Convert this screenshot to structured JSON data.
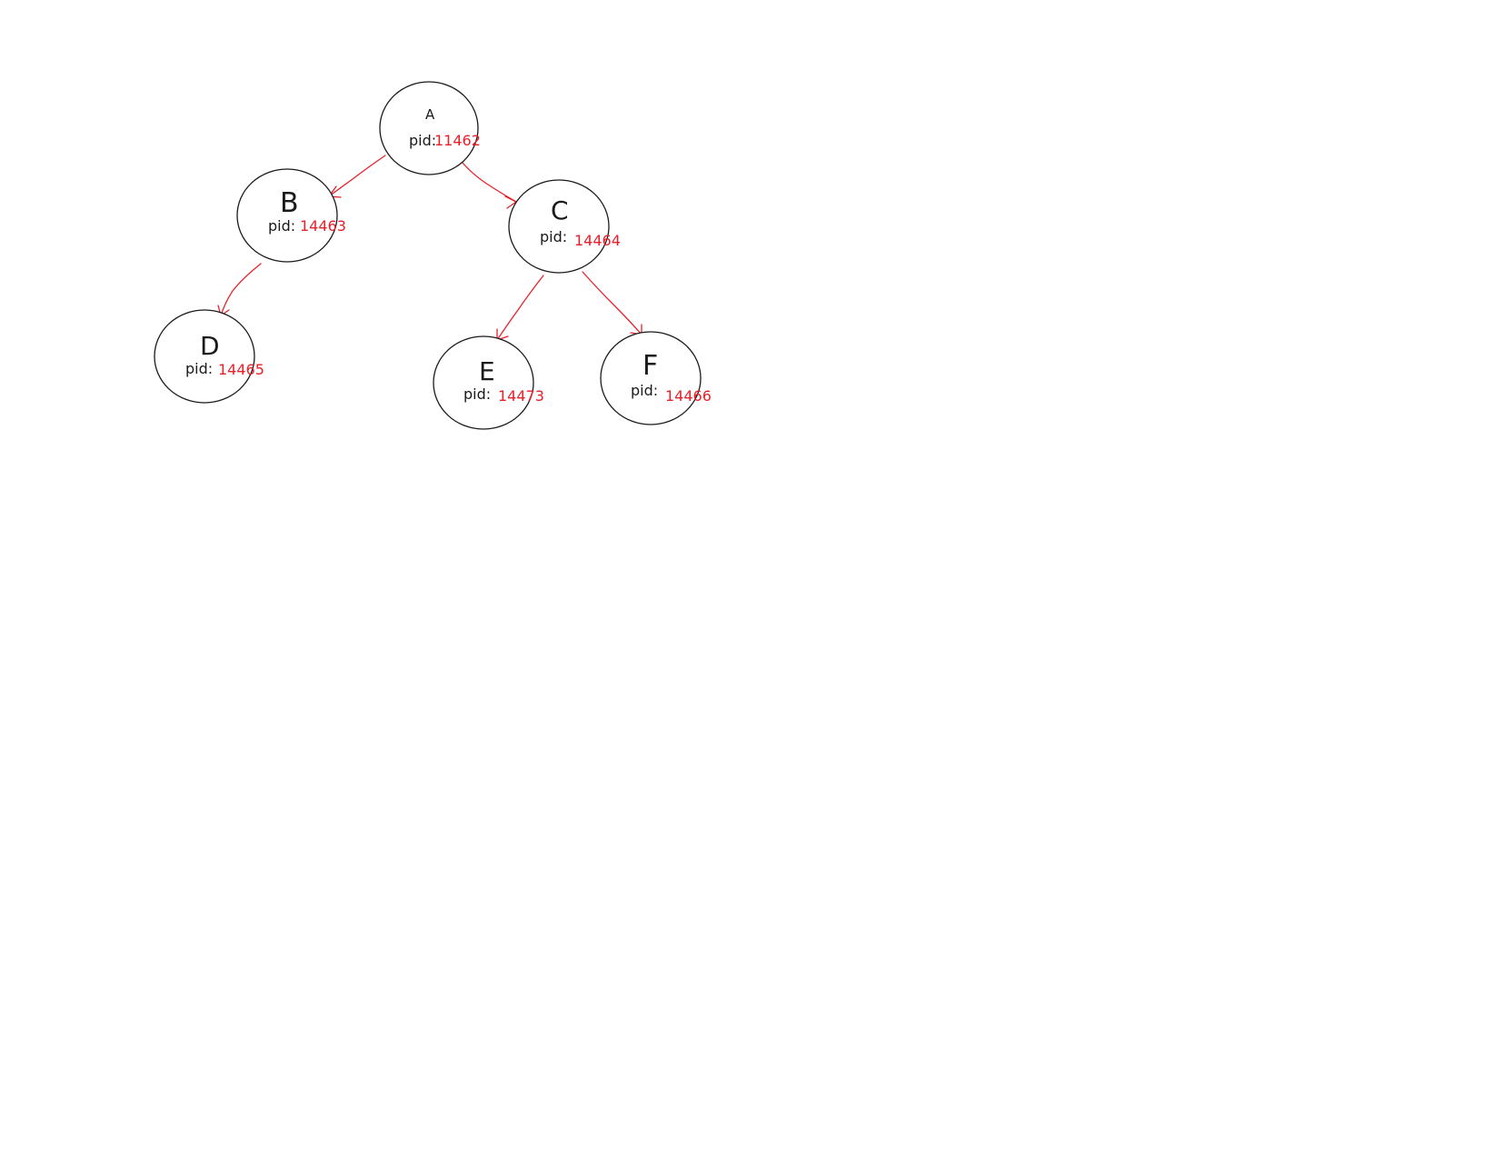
{
  "pid_label": "pid:",
  "colors": {
    "edge": "#e8202a",
    "pid_value": "#e8202a",
    "outline": "#1a1a1a",
    "text": "#1a1a1a"
  },
  "nodes": [
    {
      "id": "A",
      "name": "A",
      "pid": "11462"
    },
    {
      "id": "B",
      "name": "B",
      "pid": "14463"
    },
    {
      "id": "C",
      "name": "C",
      "pid": "14464"
    },
    {
      "id": "D",
      "name": "D",
      "pid": "14465"
    },
    {
      "id": "E",
      "name": "E",
      "pid": "14473"
    },
    {
      "id": "F",
      "name": "F",
      "pid": "14466"
    }
  ],
  "edges": [
    {
      "from": "A",
      "to": "B"
    },
    {
      "from": "A",
      "to": "C"
    },
    {
      "from": "B",
      "to": "D"
    },
    {
      "from": "C",
      "to": "E"
    },
    {
      "from": "C",
      "to": "F"
    }
  ]
}
